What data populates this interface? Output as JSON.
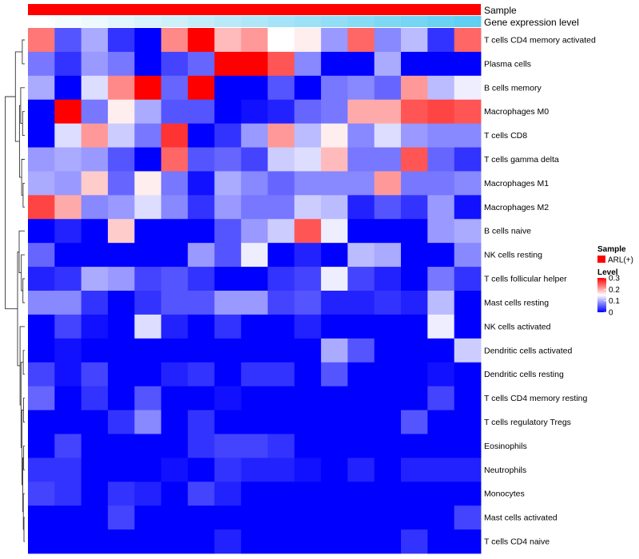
{
  "chart_data": {
    "type": "heatmap",
    "title": "",
    "annotations": {
      "sample_label": "Sample",
      "gene_label": "Gene expression level",
      "gene_level_gradient": [
        "#ffffff",
        "#5fcff2"
      ]
    },
    "rows": [
      "T cells CD4 memory activated",
      "Plasma cells",
      "B cells memory",
      "Macrophages M0",
      "T cells CD8",
      "T cells gamma delta",
      "Macrophages M1",
      "Macrophages M2",
      "B cells naive",
      "NK cells resting",
      "T cells follicular helper",
      "Mast cells resting",
      "NK cells activated",
      "Dendritic cells activated",
      "Dendritic cells resting",
      "T cells CD4 memory resting",
      "T cells regulatory  Tregs",
      "Eosinophils",
      "Neutrophils",
      "Monocytes",
      "Mast cells activated",
      "T cells CD4 naive"
    ],
    "values": [
      [
        0.23,
        0.05,
        0.1,
        0.03,
        0.0,
        0.22,
        0.3,
        0.19,
        0.21,
        0.15,
        0.16,
        0.09,
        0.24,
        0.08,
        0.11,
        0.03,
        0.24
      ],
      [
        0.07,
        0.03,
        0.09,
        0.07,
        0.0,
        0.04,
        0.06,
        0.3,
        0.3,
        0.25,
        0.08,
        0.0,
        0.0,
        0.1,
        0.0,
        0.0,
        0.0
      ],
      [
        0.1,
        0.0,
        0.13,
        0.22,
        0.3,
        0.06,
        0.3,
        0.0,
        0.0,
        0.05,
        0.0,
        0.07,
        0.08,
        0.06,
        0.21,
        0.11,
        0.14
      ],
      [
        0.0,
        0.3,
        0.07,
        0.16,
        0.1,
        0.05,
        0.05,
        0.0,
        0.01,
        0.02,
        0.06,
        0.07,
        0.2,
        0.2,
        0.25,
        0.26,
        0.25
      ],
      [
        0.0,
        0.13,
        0.21,
        0.12,
        0.07,
        0.27,
        0.0,
        0.03,
        0.09,
        0.21,
        0.11,
        0.16,
        0.08,
        0.13,
        0.09,
        0.08,
        0.08
      ],
      [
        0.09,
        0.1,
        0.09,
        0.05,
        0.0,
        0.24,
        0.05,
        0.06,
        0.04,
        0.12,
        0.13,
        0.19,
        0.07,
        0.07,
        0.25,
        0.06,
        0.03
      ],
      [
        0.1,
        0.09,
        0.18,
        0.06,
        0.16,
        0.07,
        0.01,
        0.1,
        0.08,
        0.06,
        0.08,
        0.08,
        0.08,
        0.21,
        0.07,
        0.07,
        0.08
      ],
      [
        0.26,
        0.2,
        0.08,
        0.09,
        0.13,
        0.08,
        0.03,
        0.09,
        0.07,
        0.07,
        0.12,
        0.11,
        0.02,
        0.05,
        0.03,
        0.09,
        0.01
      ],
      [
        0.0,
        0.02,
        0.0,
        0.18,
        0.0,
        0.0,
        0.0,
        0.05,
        0.09,
        0.12,
        0.25,
        0.14,
        0.0,
        0.0,
        0.0,
        0.09,
        0.1
      ],
      [
        0.06,
        0.0,
        0.0,
        0.0,
        0.0,
        0.0,
        0.09,
        0.05,
        0.14,
        0.0,
        0.02,
        0.0,
        0.11,
        0.1,
        0.0,
        0.0,
        0.08
      ],
      [
        0.02,
        0.03,
        0.1,
        0.09,
        0.04,
        0.05,
        0.03,
        0.0,
        0.0,
        0.03,
        0.04,
        0.14,
        0.04,
        0.02,
        0.0,
        0.07,
        0.03
      ],
      [
        0.08,
        0.08,
        0.03,
        0.0,
        0.03,
        0.05,
        0.05,
        0.09,
        0.09,
        0.04,
        0.05,
        0.02,
        0.02,
        0.03,
        0.02,
        0.11,
        0.0
      ],
      [
        0.0,
        0.04,
        0.01,
        0.0,
        0.13,
        0.02,
        0.0,
        0.03,
        0.0,
        0.0,
        0.02,
        0.0,
        0.0,
        0.0,
        0.0,
        0.14,
        0.0
      ],
      [
        0.0,
        0.01,
        0.0,
        0.0,
        0.0,
        0.0,
        0.0,
        0.0,
        0.0,
        0.0,
        0.0,
        0.1,
        0.05,
        0.0,
        0.0,
        0.0,
        0.12
      ],
      [
        0.04,
        0.01,
        0.04,
        0.0,
        0.0,
        0.02,
        0.03,
        0.0,
        0.03,
        0.03,
        0.0,
        0.05,
        0.0,
        0.0,
        0.0,
        0.01,
        0.0
      ],
      [
        0.06,
        0.0,
        0.03,
        0.0,
        0.05,
        0.0,
        0.0,
        0.01,
        0.0,
        0.0,
        0.0,
        0.0,
        0.0,
        0.0,
        0.0,
        0.04,
        0.0
      ],
      [
        0.0,
        0.0,
        0.0,
        0.03,
        0.08,
        0.0,
        0.03,
        0.0,
        0.0,
        0.0,
        0.0,
        0.0,
        0.0,
        0.0,
        0.05,
        0.0,
        0.0
      ],
      [
        0.0,
        0.04,
        0.0,
        0.0,
        0.0,
        0.0,
        0.03,
        0.04,
        0.04,
        0.03,
        0.0,
        0.0,
        0.0,
        0.0,
        0.0,
        0.0,
        0.0
      ],
      [
        0.03,
        0.03,
        0.0,
        0.0,
        0.0,
        0.01,
        0.0,
        0.03,
        0.02,
        0.02,
        0.01,
        0.0,
        0.02,
        0.0,
        0.02,
        0.02,
        0.02
      ],
      [
        0.04,
        0.03,
        0.0,
        0.03,
        0.02,
        0.0,
        0.04,
        0.02,
        0.0,
        0.0,
        0.0,
        0.0,
        0.0,
        0.0,
        0.0,
        0.0,
        0.0
      ],
      [
        0.0,
        0.0,
        0.0,
        0.04,
        0.0,
        0.0,
        0.0,
        0.0,
        0.0,
        0.0,
        0.0,
        0.0,
        0.0,
        0.0,
        0.0,
        0.0,
        0.04
      ],
      [
        0.0,
        0.0,
        0.0,
        0.0,
        0.0,
        0.0,
        0.0,
        0.02,
        0.0,
        0.0,
        0.0,
        0.0,
        0.0,
        0.0,
        0.03,
        0.0,
        0.0
      ]
    ],
    "gene_expression_levels": [
      0.0,
      0.06,
      0.12,
      0.18,
      0.25,
      0.31,
      0.37,
      0.43,
      0.5,
      0.56,
      0.62,
      0.68,
      0.75,
      0.81,
      0.87,
      0.93,
      1.0
    ],
    "color_scale": {
      "min": 0,
      "max": 0.3,
      "colors": [
        "#0000ff",
        "#ffffff",
        "#ff0000"
      ]
    },
    "legend": {
      "sample_title": "Sample",
      "sample_entry": "ARL(+)",
      "sample_color": "#ff0000",
      "level_title": "Level",
      "level_ticks": [
        "0.3",
        "0.2",
        "0.1",
        "0"
      ],
      "level_tick_values": [
        0.3,
        0.2,
        0.1,
        0
      ],
      "position": "right"
    },
    "xlabel": "",
    "ylabel": ""
  }
}
